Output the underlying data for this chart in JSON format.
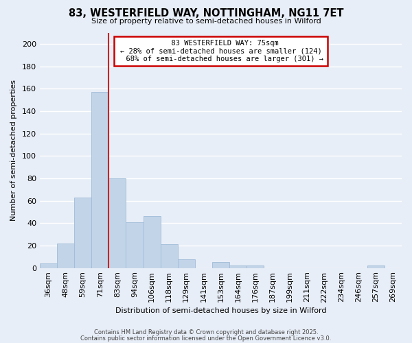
{
  "title": "83, WESTERFIELD WAY, NOTTINGHAM, NG11 7ET",
  "subtitle": "Size of property relative to semi-detached houses in Wilford",
  "xlabel": "Distribution of semi-detached houses by size in Wilford",
  "ylabel": "Number of semi-detached properties",
  "bar_labels": [
    "36sqm",
    "48sqm",
    "59sqm",
    "71sqm",
    "83sqm",
    "94sqm",
    "106sqm",
    "118sqm",
    "129sqm",
    "141sqm",
    "153sqm",
    "164sqm",
    "176sqm",
    "187sqm",
    "199sqm",
    "211sqm",
    "222sqm",
    "234sqm",
    "246sqm",
    "257sqm",
    "269sqm"
  ],
  "bar_values": [
    4,
    22,
    63,
    157,
    80,
    41,
    46,
    21,
    8,
    0,
    5,
    2,
    2,
    0,
    0,
    0,
    0,
    0,
    0,
    2,
    0
  ],
  "bar_color": "#c2d4e8",
  "bar_edge_color": "#a0bcd8",
  "background_color": "#e8eef7",
  "grid_color": "#ffffff",
  "property_label": "  83 WESTERFIELD WAY: 75sqm",
  "annotation_smaller": "← 28% of semi-detached houses are smaller (124)",
  "annotation_larger": "  68% of semi-detached houses are larger (301) →",
  "annotation_box_color": "#cc0000",
  "property_line_color": "#cc2222",
  "ylim": [
    0,
    210
  ],
  "yticks": [
    0,
    20,
    40,
    60,
    80,
    100,
    120,
    140,
    160,
    180,
    200
  ],
  "footer1": "Contains HM Land Registry data © Crown copyright and database right 2025.",
  "footer2": "Contains public sector information licensed under the Open Government Licence v3.0."
}
